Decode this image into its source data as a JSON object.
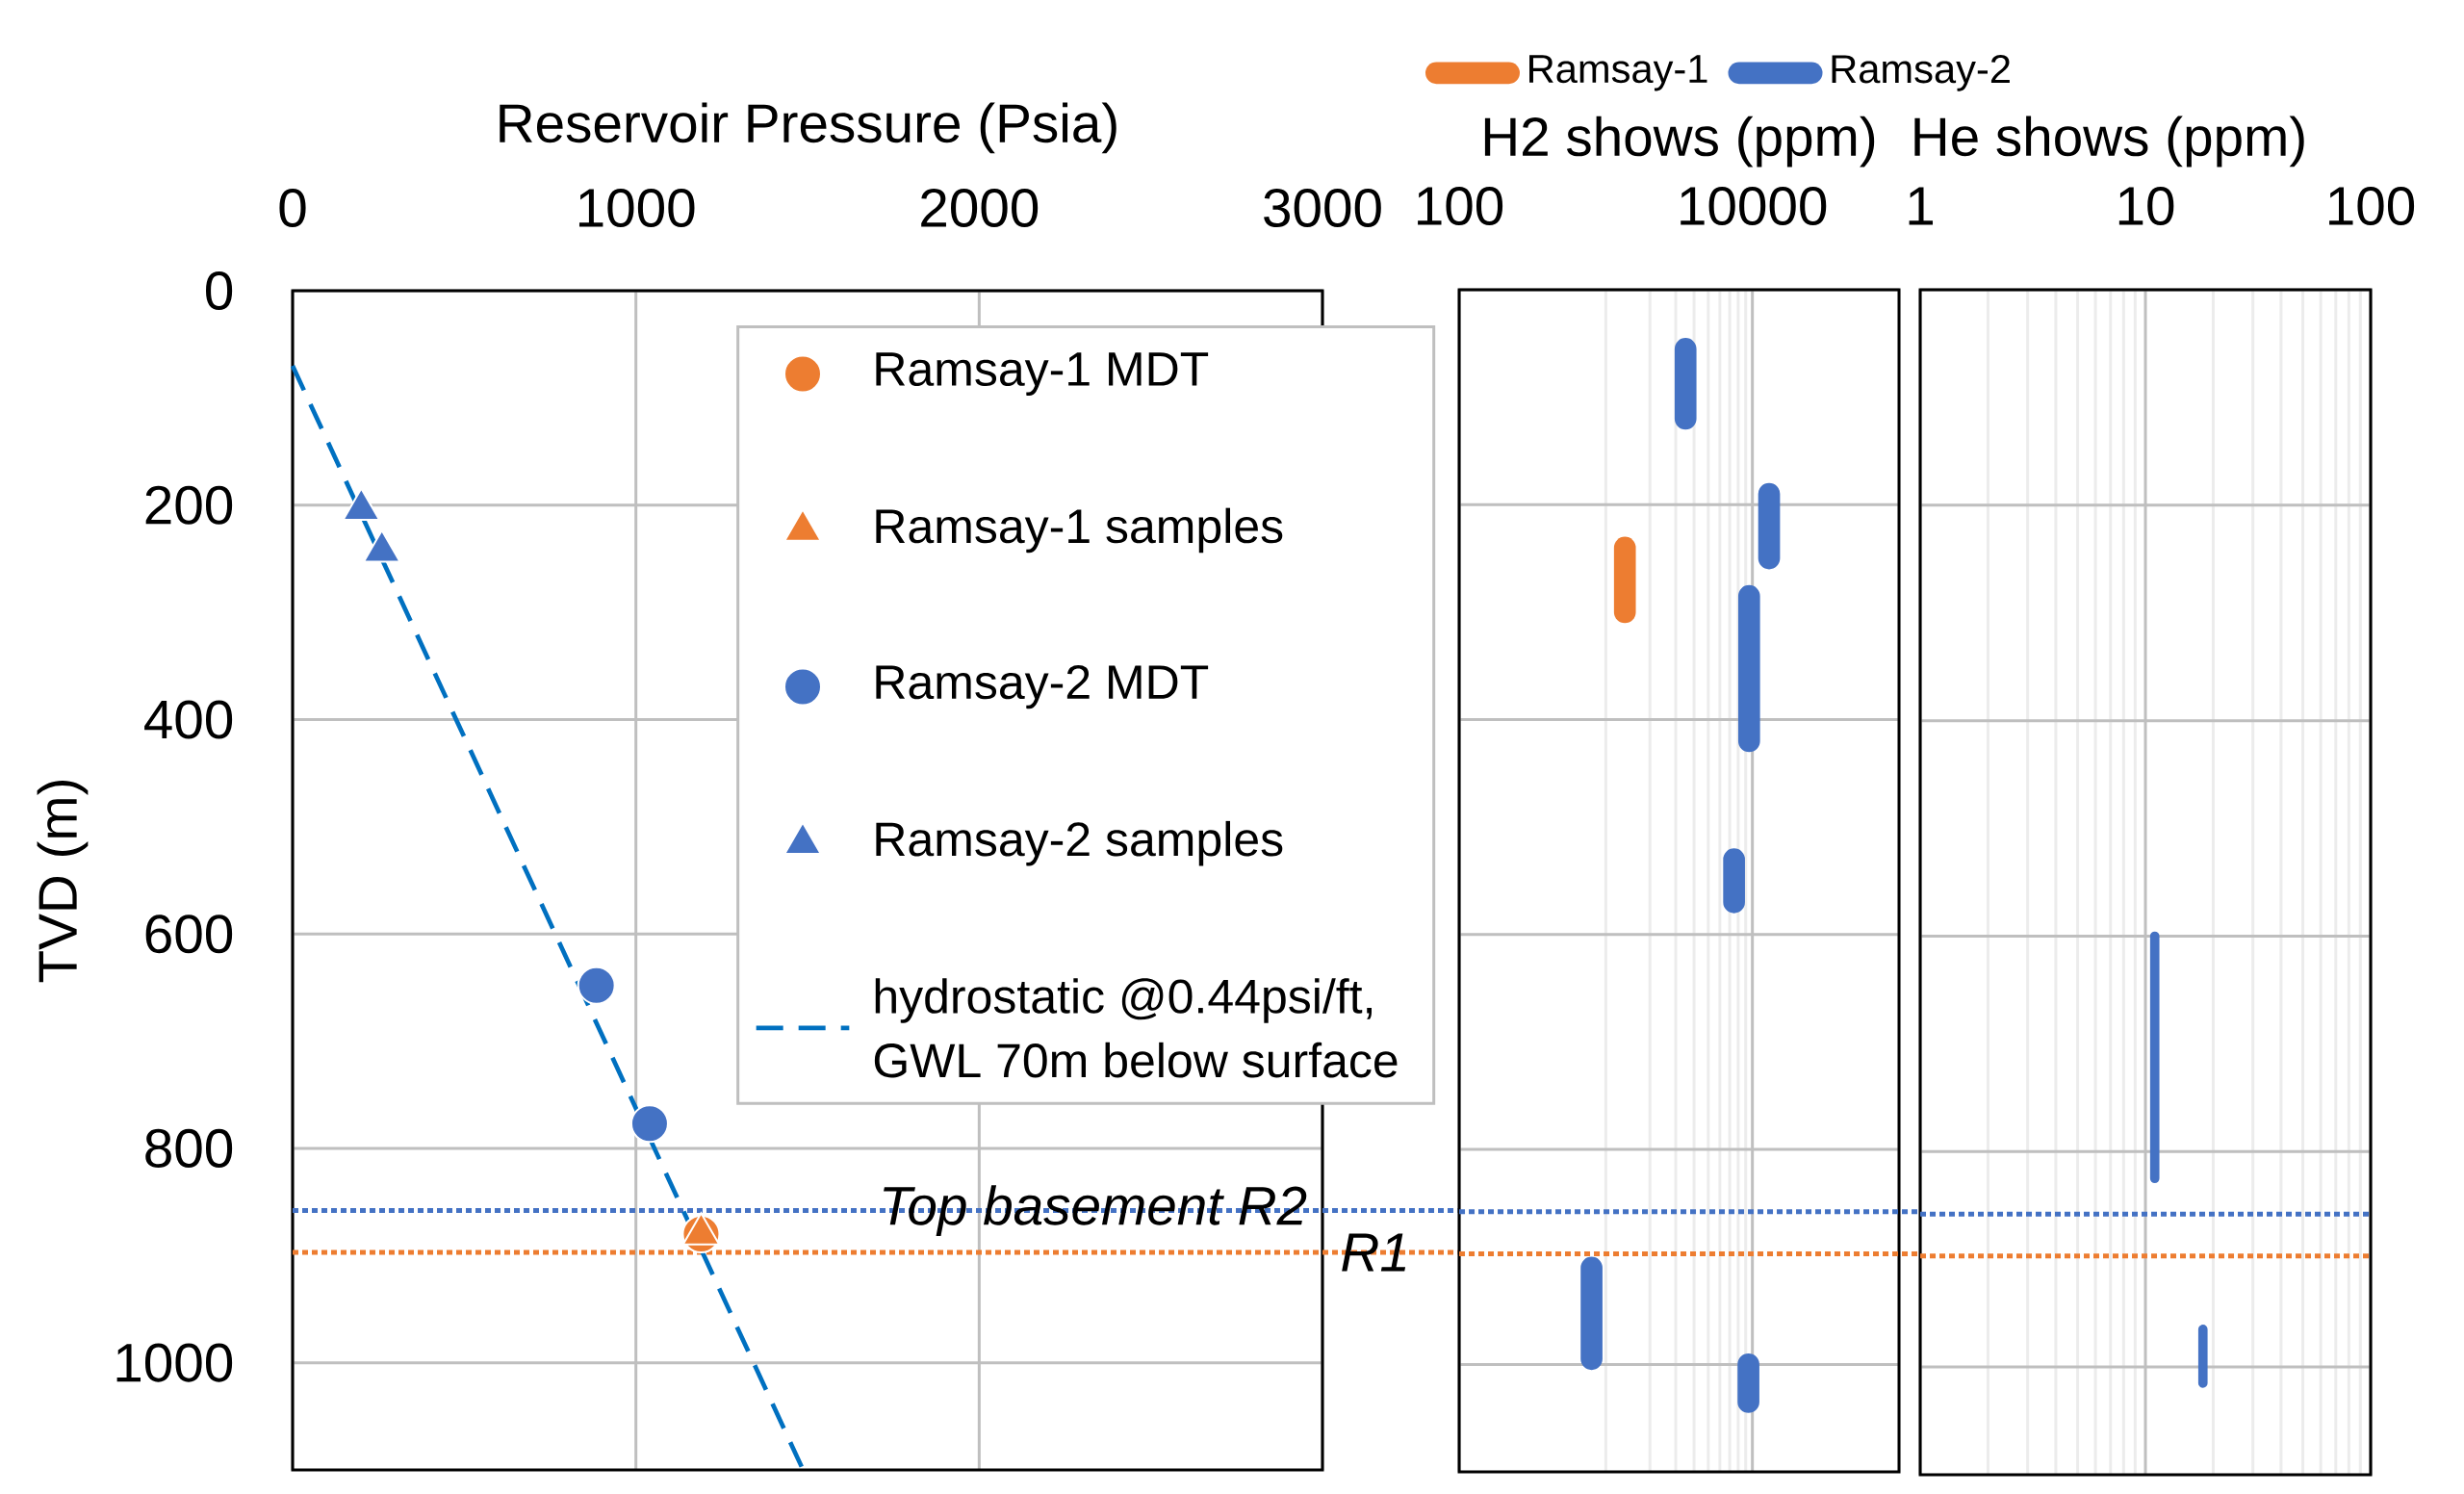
{
  "chart_data": [
    {
      "type": "scatter",
      "xlabel": "Reservoir Pressure (Psia)",
      "ylabel": "TVD (m)",
      "xlim": [
        0,
        3000
      ],
      "xticks": [
        0,
        1000,
        2000,
        3000
      ],
      "ylim": [
        1100,
        0
      ],
      "yticks": [
        0,
        200,
        400,
        600,
        800,
        1000
      ],
      "grid": true,
      "legend": "top right",
      "series": [
        {
          "name": "Ramsay-1 MDT",
          "color": "#ed7d31",
          "marker": "circle",
          "x": [
            1190
          ],
          "values": [
            880
          ]
        },
        {
          "name": "Ramsay-1 samples",
          "color": "#ed7d31",
          "marker": "triangle",
          "x": [
            1190
          ],
          "values": [
            880
          ]
        },
        {
          "name": "Ramsay-2 MDT",
          "color": "#4472c4",
          "marker": "circle",
          "x": [
            885,
            1040
          ],
          "values": [
            648,
            777
          ]
        },
        {
          "name": "Ramsay-2 samples",
          "color": "#4472c4",
          "marker": "triangle",
          "x": [
            200,
            260
          ],
          "values": [
            204,
            243
          ]
        },
        {
          "name": "hydrostatic @0.44psi/ft, GWL 70m below surface",
          "type": "line",
          "color": "#0070c0",
          "marker": "none",
          "line_style": "dashed",
          "x": [
            0,
            1487
          ],
          "values": [
            70,
            1100
          ]
        }
      ],
      "ref_lines": [
        {
          "axis": "y",
          "value": 858,
          "label": "Top basement R2",
          "color": "#4472c4",
          "line_style": "dotted"
        },
        {
          "axis": "y",
          "value": 897,
          "label": "R1",
          "color": "#ed7d31",
          "line_style": "dotted"
        }
      ]
    },
    {
      "type": "line",
      "xlabel": "H2 shows (ppm)",
      "xlim": [
        100,
        100000
      ],
      "xticks": [
        100,
        10000
      ],
      "log": "x",
      "ylim": [
        1100,
        0
      ],
      "yticks": [
        0,
        200,
        400,
        600,
        800,
        1000
      ],
      "tick_labels": "x",
      "grid": true,
      "legend": "top",
      "series": [
        {
          "name": "Ramsay-1",
          "color": "#ed7d31",
          "x": [
            1350,
            1350
          ],
          "values": [
            240,
            300
          ]
        },
        {
          "name": "Ramsay-2",
          "color": "#4472c4",
          "x": [
            3500,
            3500,
            null,
            13000,
            13000,
            null,
            9500,
            9500,
            null,
            7500,
            7500,
            null,
            800,
            800,
            null,
            9400,
            9400
          ],
          "values": [
            55,
            120,
            null,
            190,
            250,
            null,
            285,
            420,
            null,
            530,
            570,
            null,
            910,
            995,
            null,
            1000,
            1035
          ]
        }
      ],
      "ref_lines": [
        {
          "axis": "y",
          "value": 858,
          "color": "#4472c4",
          "line_style": "dotted"
        },
        {
          "axis": "y",
          "value": 897,
          "color": "#ed7d31",
          "line_style": "dotted"
        }
      ]
    },
    {
      "type": "line",
      "xlabel": "He shows (ppm)",
      "xlim": [
        1,
        100
      ],
      "xticks": [
        1,
        10,
        100
      ],
      "log": "x",
      "ylim": [
        1100,
        0
      ],
      "yticks": [
        0,
        200,
        400,
        600,
        800,
        1000
      ],
      "tick_labels": "x",
      "grid": true,
      "series": [
        {
          "color": "#4472c4",
          "x": [
            11,
            11,
            null,
            18,
            18
          ],
          "values": [
            600,
            825,
            null,
            965,
            1015
          ]
        }
      ],
      "ref_lines": [
        {
          "axis": "y",
          "value": 858,
          "color": "#4472c4",
          "line_style": "dotted"
        },
        {
          "axis": "y",
          "value": 897,
          "color": "#ed7d31",
          "line_style": "dotted"
        }
      ]
    }
  ]
}
